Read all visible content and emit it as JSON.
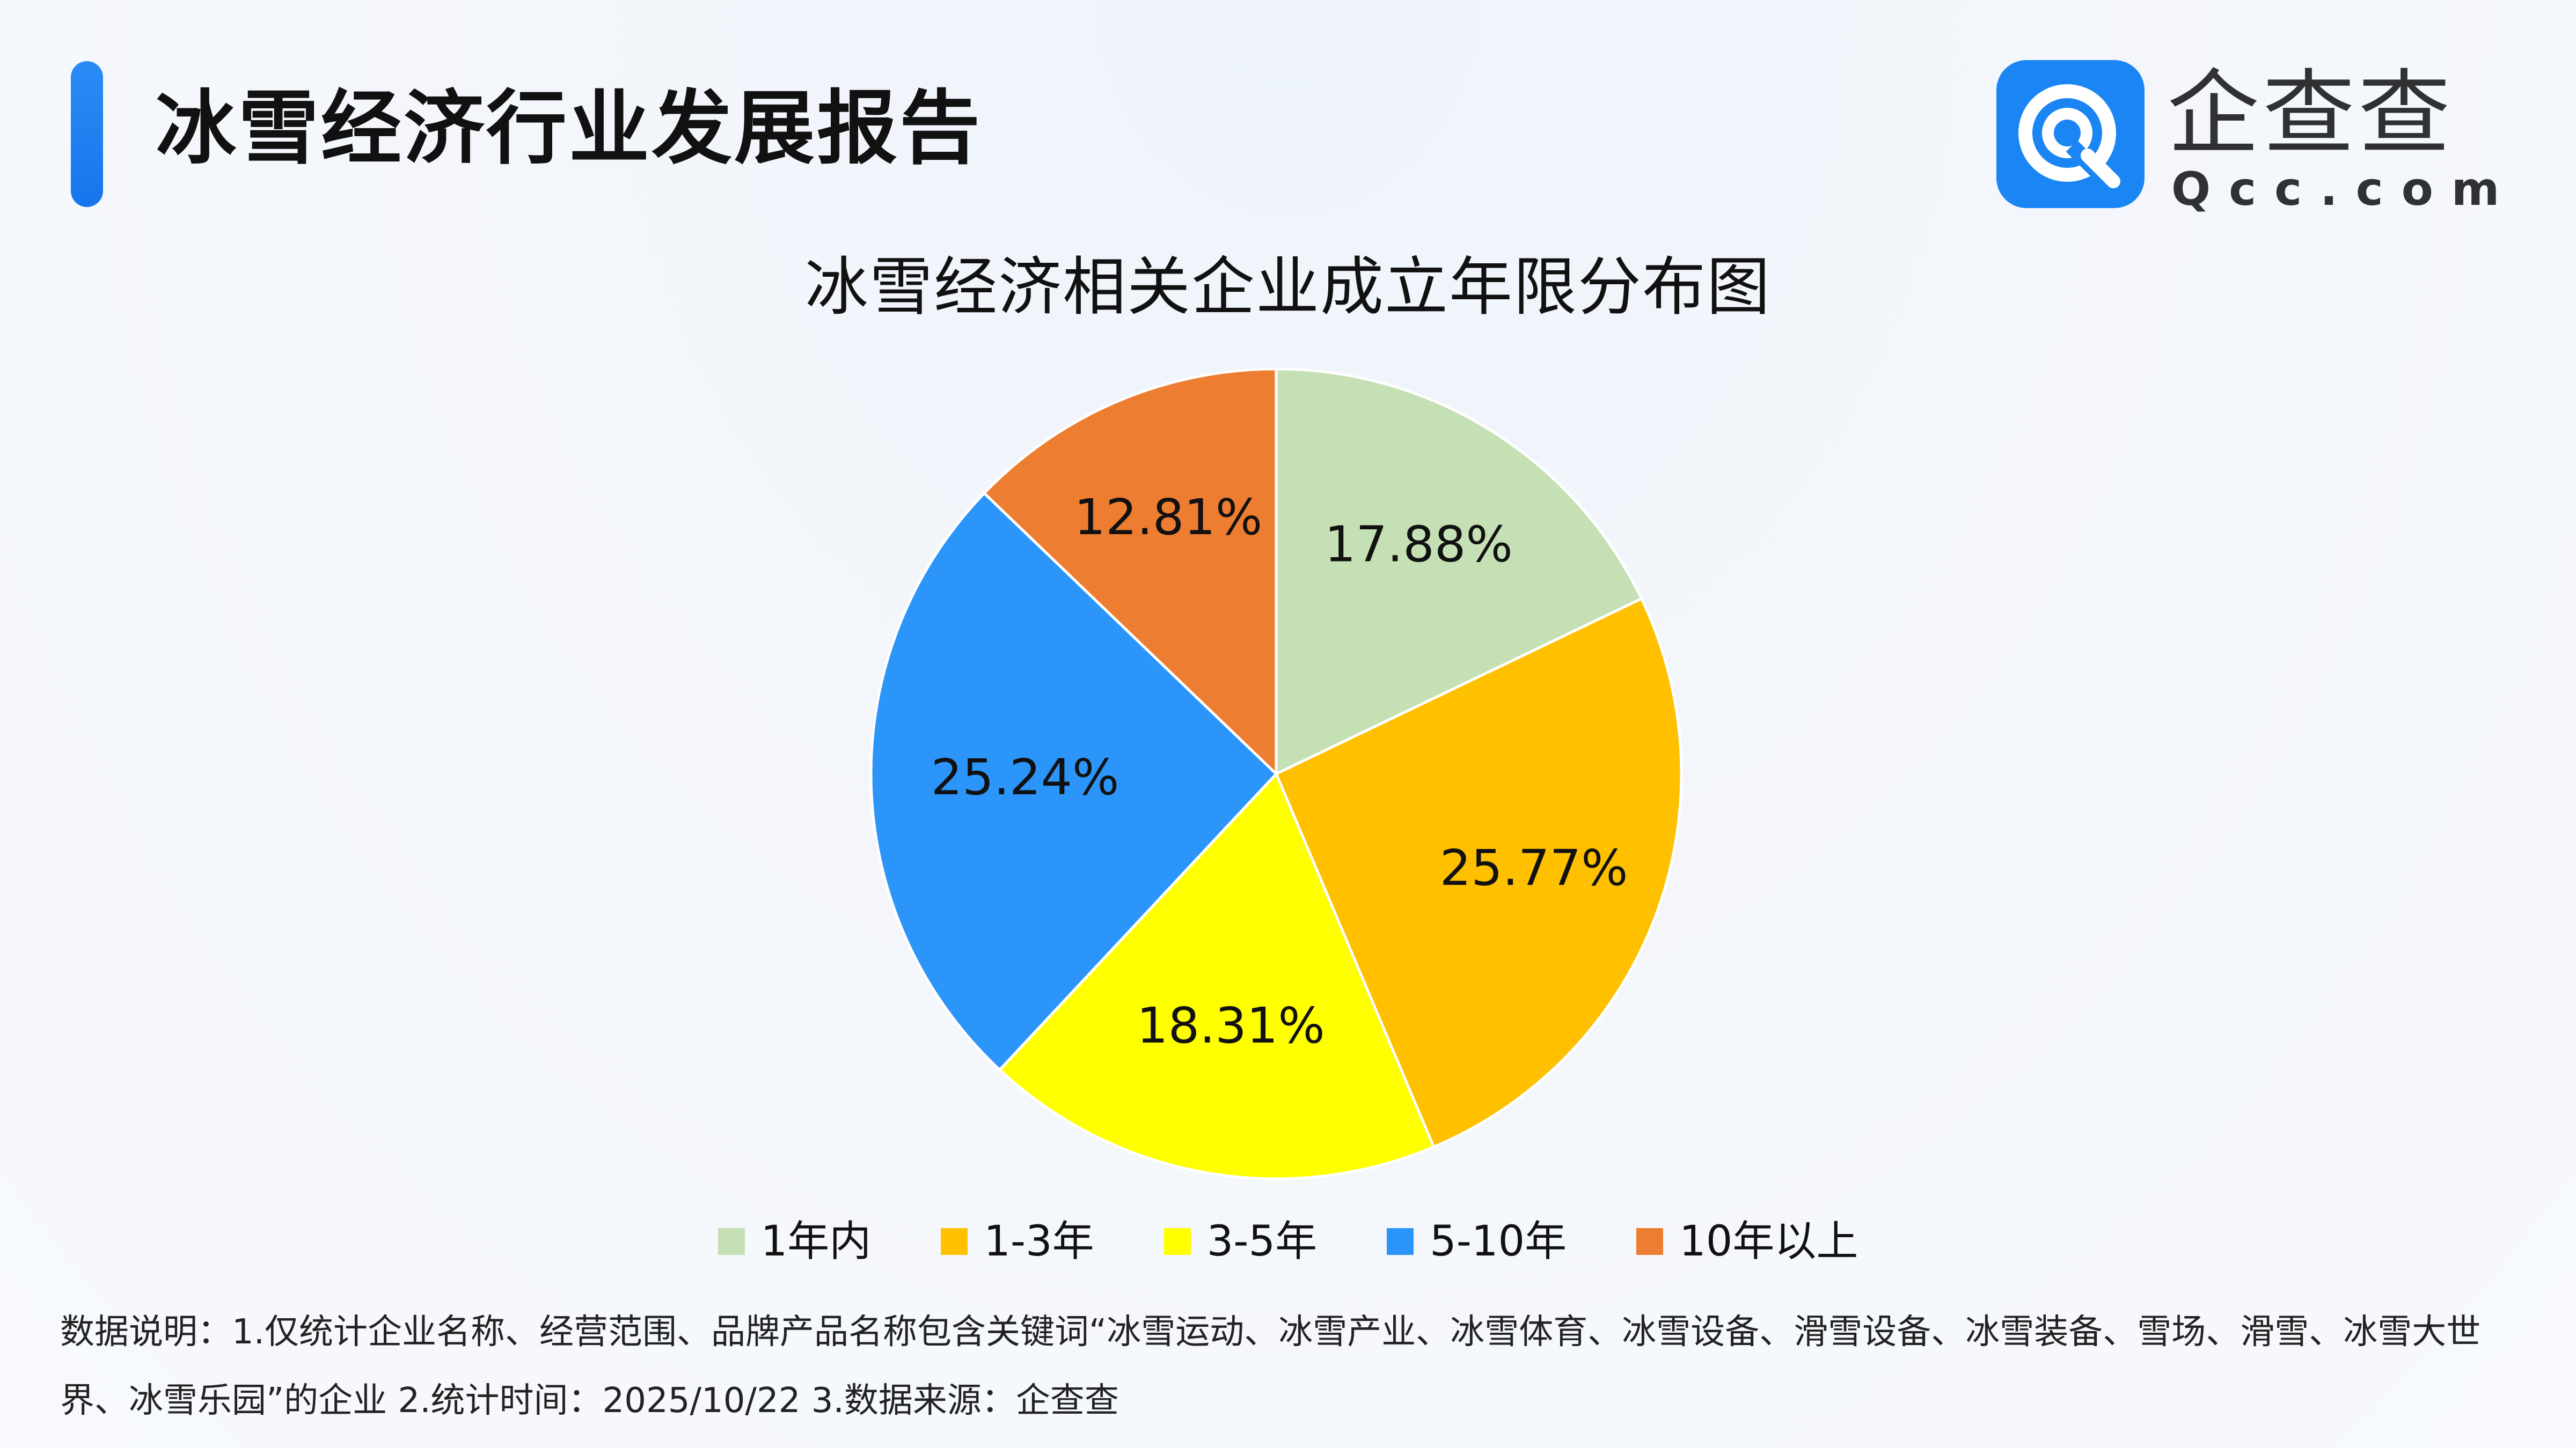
{
  "header": {
    "report_title": "冰雪经济行业发展报告",
    "logo_name": "企查查",
    "logo_url": "Qcc.com"
  },
  "chart_data": {
    "type": "pie",
    "title": "冰雪经济相关企业成立年限分布图",
    "categories": [
      "1年内",
      "1-3年",
      "3-5年",
      "5-10年",
      "10年以上"
    ],
    "values": [
      17.88,
      25.77,
      18.31,
      25.24,
      12.81
    ],
    "labels": [
      "17.88%",
      "25.77%",
      "18.31%",
      "25.24%",
      "12.81%"
    ],
    "colors": [
      "#c5e0b4",
      "#ffc000",
      "#ffff00",
      "#2c95fa",
      "#ed7d31"
    ],
    "legend": "bottom",
    "start": "12 o'clock, clockwise"
  },
  "footnote": {
    "text": "数据说明：1.仅统计企业名称、经营范围、品牌产品名称包含关键词“冰雪运动、冰雪产业、冰雪体育、冰雪设备、滑雪设备、冰雪装备、雪场、滑雪、冰雪大世界、冰雪乐园”的企业   2.统计时间：2025/10/22    3.数据来源：企查查"
  }
}
